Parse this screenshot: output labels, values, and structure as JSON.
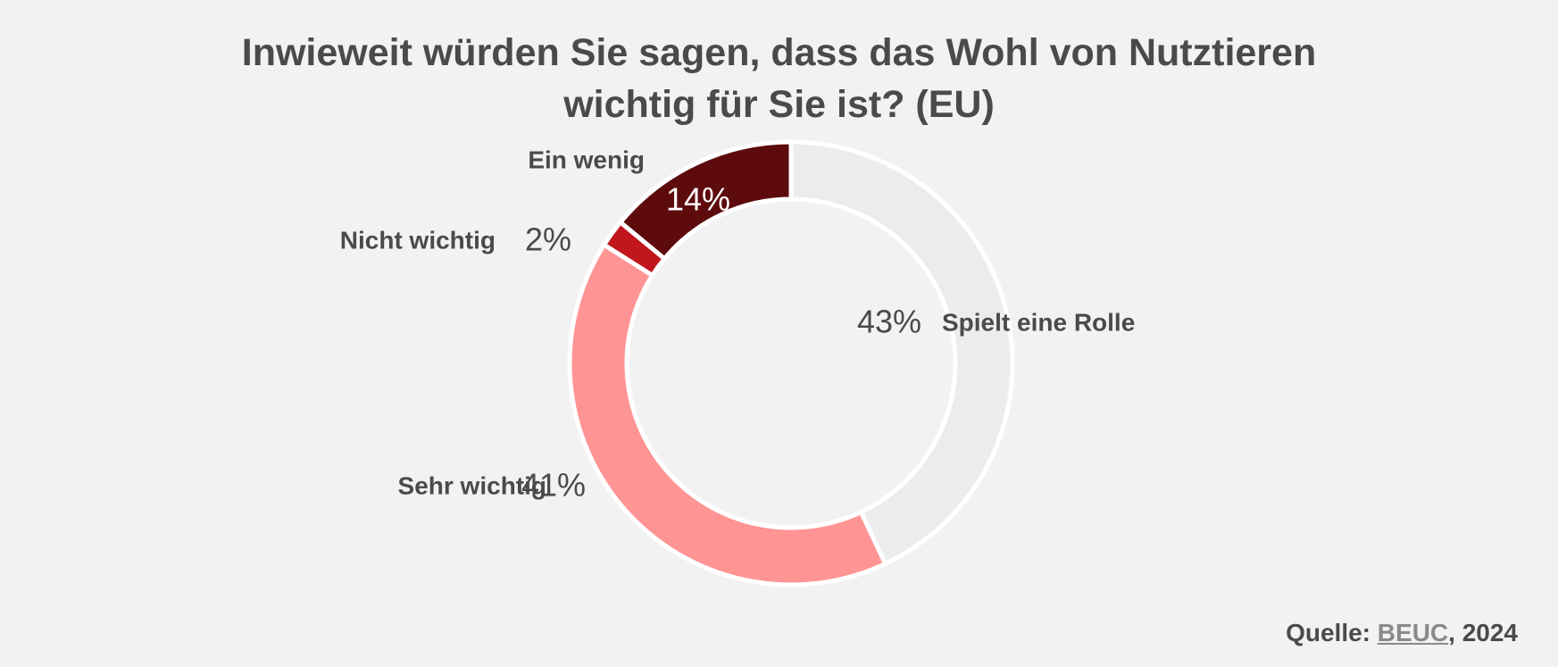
{
  "chart_data": {
    "type": "pie",
    "variant": "donut",
    "title_line1": "Inwieweit würden Sie sagen, dass das Wohl von Nutztieren",
    "title_line2": "wichtig für Sie ist? (EU)",
    "slices": [
      {
        "label": "Spielt eine Rolle",
        "value": 43,
        "pct_label": "43%",
        "color": "#ececec",
        "text_color": "#4a4a4a"
      },
      {
        "label": "Sehr wichtig",
        "value": 41,
        "pct_label": "41%",
        "color": "#ff9494",
        "text_color": "#4a4a4a"
      },
      {
        "label": "Nicht wichtig",
        "value": 2,
        "pct_label": "2%",
        "color": "#c0161c",
        "text_color": "#4a4a4a"
      },
      {
        "label": "Ein wenig",
        "value": 14,
        "pct_label": "14%",
        "color": "#5d0b0d",
        "text_color": "#ffffff"
      }
    ],
    "source": {
      "prefix": "Quelle: ",
      "link_text": "BEUC",
      "suffix": ", 2024"
    }
  }
}
